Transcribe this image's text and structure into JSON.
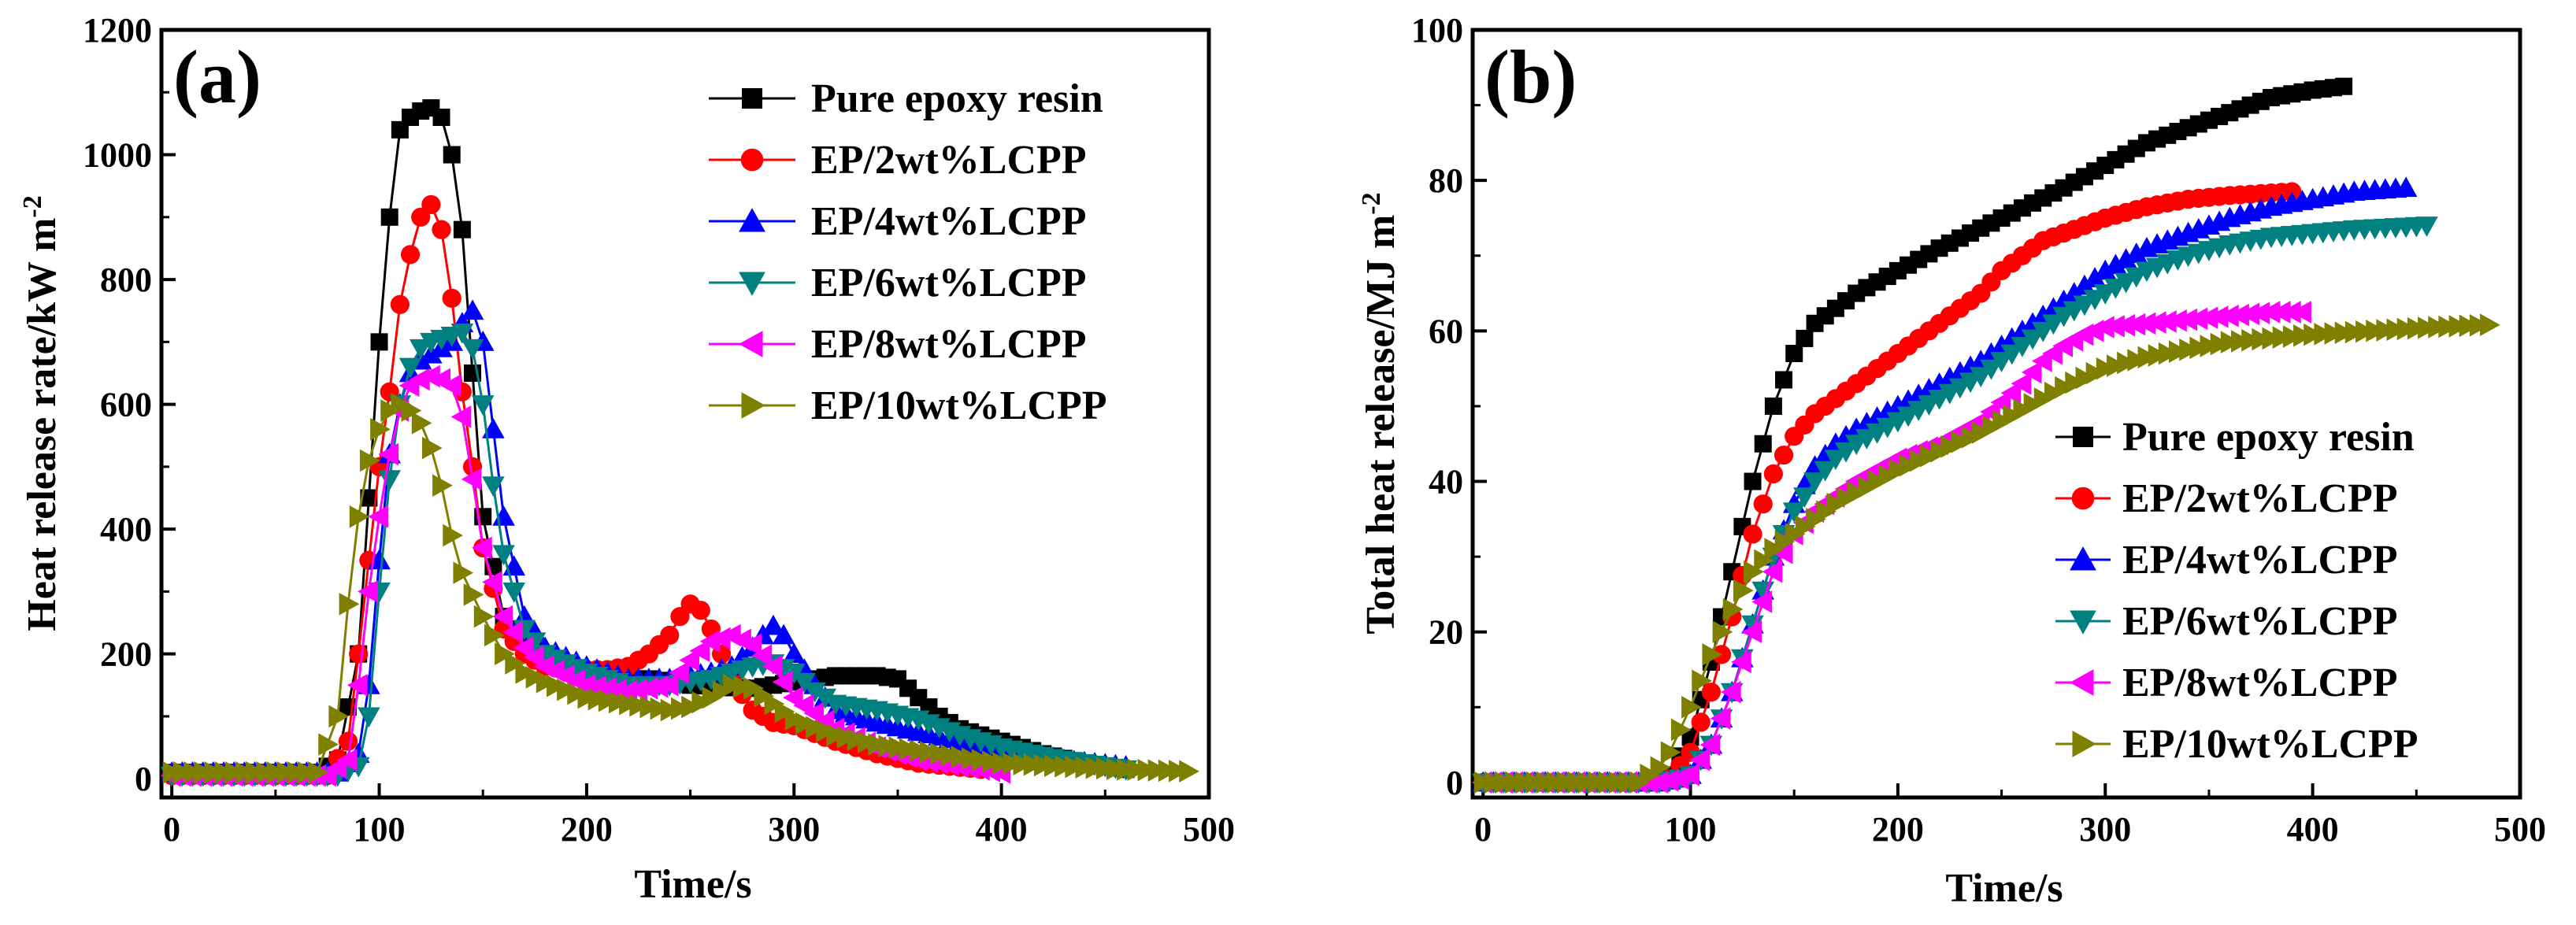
{
  "chart_data": [
    {
      "type": "line",
      "panel_label": "(a)",
      "xlabel": "Time/s",
      "ylabel": "Heat release rate/kW m",
      "ylabel_sup": "-2",
      "xlim": [
        -5,
        500
      ],
      "ylim": [
        -30,
        1200
      ],
      "xticks": [
        "0",
        "100",
        "200",
        "300",
        "400",
        "500"
      ],
      "yticks": [
        "0",
        "200",
        "400",
        "600",
        "800",
        "1000",
        "1200"
      ],
      "legend_position": "top-right",
      "series": [
        {
          "name": "Pure epoxy resin",
          "color": "#000000",
          "marker": "square",
          "x": [
            0,
            70,
            80,
            90,
            95,
            100,
            105,
            110,
            115,
            120,
            125,
            130,
            135,
            140,
            145,
            150,
            160,
            170,
            180,
            200,
            210,
            220,
            230,
            240,
            250,
            260,
            270,
            280,
            290,
            300,
            310,
            320,
            330,
            340,
            350,
            360,
            370,
            380,
            400,
            420,
            440,
            460
          ],
          "y": [
            10,
            10,
            30,
            200,
            450,
            700,
            900,
            1040,
            1060,
            1070,
            1075,
            1060,
            1000,
            880,
            650,
            420,
            260,
            220,
            190,
            170,
            165,
            160,
            160,
            155,
            150,
            148,
            146,
            145,
            150,
            155,
            160,
            165,
            165,
            165,
            160,
            130,
            100,
            80,
            60,
            40,
            25,
            15
          ]
        },
        {
          "name": "EP/2wt%LCPP",
          "color": "#ff0000",
          "marker": "circle",
          "x": [
            0,
            75,
            85,
            90,
            95,
            100,
            105,
            110,
            115,
            120,
            125,
            130,
            135,
            140,
            145,
            150,
            160,
            170,
            180,
            190,
            200,
            210,
            220,
            230,
            240,
            245,
            250,
            255,
            260,
            270,
            280,
            290,
            300,
            320,
            340,
            360,
            390
          ],
          "y": [
            5,
            5,
            60,
            200,
            350,
            500,
            620,
            760,
            840,
            900,
            920,
            880,
            770,
            620,
            500,
            370,
            240,
            200,
            180,
            175,
            175,
            175,
            180,
            200,
            230,
            260,
            280,
            270,
            240,
            160,
            110,
            90,
            85,
            60,
            40,
            25,
            15
          ]
        },
        {
          "name": "EP/4wt%LCPP",
          "color": "#0000ff",
          "marker": "triangle-up",
          "x": [
            0,
            80,
            90,
            95,
            100,
            105,
            110,
            115,
            120,
            125,
            130,
            135,
            140,
            145,
            150,
            155,
            160,
            170,
            180,
            200,
            220,
            240,
            260,
            270,
            280,
            285,
            290,
            295,
            300,
            310,
            320,
            340,
            360,
            380,
            400,
            430,
            460
          ],
          "y": [
            10,
            10,
            40,
            150,
            350,
            520,
            600,
            650,
            670,
            680,
            690,
            700,
            730,
            750,
            700,
            560,
            420,
            260,
            210,
            180,
            160,
            160,
            170,
            180,
            210,
            230,
            245,
            230,
            200,
            150,
            110,
            90,
            75,
            60,
            45,
            30,
            20
          ]
        },
        {
          "name": "EP/6wt%LCPP",
          "color": "#008080",
          "marker": "triangle-down",
          "x": [
            0,
            80,
            90,
            95,
            100,
            105,
            110,
            115,
            120,
            125,
            130,
            135,
            140,
            145,
            150,
            155,
            160,
            170,
            180,
            200,
            220,
            240,
            260,
            270,
            280,
            290,
            300,
            310,
            320,
            340,
            360,
            380,
            400,
            430,
            460
          ],
          "y": [
            5,
            5,
            20,
            100,
            300,
            480,
            600,
            660,
            690,
            700,
            705,
            710,
            715,
            690,
            600,
            470,
            360,
            240,
            200,
            170,
            150,
            150,
            160,
            170,
            180,
            185,
            170,
            140,
            120,
            110,
            95,
            70,
            50,
            30,
            15
          ]
        },
        {
          "name": "EP/8wt%LCPP",
          "color": "#ff00ff",
          "marker": "triangle-left",
          "x": [
            0,
            75,
            85,
            90,
            95,
            100,
            105,
            110,
            115,
            120,
            125,
            130,
            135,
            140,
            145,
            150,
            160,
            170,
            180,
            200,
            220,
            240,
            250,
            260,
            270,
            280,
            290,
            300,
            320,
            340,
            360,
            380,
            400
          ],
          "y": [
            5,
            5,
            30,
            150,
            300,
            420,
            520,
            590,
            630,
            640,
            645,
            640,
            630,
            580,
            480,
            370,
            260,
            210,
            180,
            150,
            140,
            150,
            190,
            220,
            230,
            215,
            180,
            130,
            80,
            50,
            30,
            20,
            10
          ]
        },
        {
          "name": "EP/10wt%LCPP",
          "color": "#808000",
          "marker": "triangle-right",
          "x": [
            0,
            70,
            80,
            85,
            90,
            95,
            100,
            105,
            110,
            115,
            120,
            125,
            130,
            135,
            140,
            150,
            160,
            170,
            180,
            200,
            220,
            240,
            250,
            260,
            270,
            280,
            290,
            300,
            320,
            340,
            360,
            380,
            400,
            430,
            460,
            490
          ],
          "y": [
            10,
            10,
            100,
            280,
            420,
            510,
            560,
            590,
            600,
            590,
            570,
            530,
            470,
            390,
            330,
            260,
            200,
            170,
            155,
            130,
            120,
            110,
            115,
            130,
            150,
            145,
            120,
            95,
            70,
            55,
            45,
            35,
            25,
            20,
            15,
            12
          ]
        }
      ]
    },
    {
      "type": "line",
      "panel_label": "(b)",
      "xlabel": "Time/s",
      "ylabel": "Total heat release/MJ m",
      "ylabel_sup": "-2",
      "xlim": [
        -5,
        500
      ],
      "ylim": [
        -2,
        100
      ],
      "xticks": [
        "0",
        "100",
        "200",
        "300",
        "400",
        "500"
      ],
      "yticks": [
        "0",
        "20",
        "40",
        "60",
        "80",
        "100"
      ],
      "legend_position": "center-right",
      "series": [
        {
          "name": "Pure epoxy resin",
          "color": "#000000",
          "marker": "square",
          "x": [
            0,
            80,
            90,
            100,
            110,
            120,
            130,
            140,
            150,
            160,
            170,
            180,
            200,
            220,
            250,
            280,
            300,
            320,
            340,
            360,
            380,
            400,
            415
          ],
          "y": [
            0,
            0,
            1,
            6,
            16,
            28,
            40,
            50,
            57,
            61,
            63,
            65,
            68,
            71,
            75,
            79,
            82,
            85,
            87,
            89,
            91,
            92,
            92.5
          ]
        },
        {
          "name": "EP/2wt%LCPP",
          "color": "#ff0000",
          "marker": "circle",
          "x": [
            0,
            80,
            90,
            100,
            110,
            120,
            130,
            140,
            150,
            160,
            170,
            180,
            200,
            220,
            240,
            250,
            260,
            270,
            280,
            300,
            320,
            340,
            360,
            390
          ],
          "y": [
            0,
            0,
            0.5,
            4,
            12,
            22,
            33,
            41,
            46,
            49,
            51,
            53,
            57,
            61,
            65,
            68,
            70,
            72,
            73,
            75,
            76.5,
            77.5,
            78,
            78.5
          ]
        },
        {
          "name": "EP/4wt%LCPP",
          "color": "#0000ff",
          "marker": "triangle-up",
          "x": [
            0,
            85,
            95,
            100,
            110,
            120,
            130,
            140,
            150,
            160,
            170,
            180,
            200,
            220,
            240,
            260,
            280,
            300,
            320,
            340,
            360,
            380,
            400,
            420,
            445
          ],
          "y": [
            0,
            0,
            0.5,
            1,
            5,
            12,
            21,
            30,
            37,
            42,
            45,
            47,
            50,
            53,
            56,
            60,
            64,
            68,
            71,
            73,
            75,
            76.5,
            77.5,
            78.5,
            79
          ]
        },
        {
          "name": "EP/6wt%LCPP",
          "color": "#008080",
          "marker": "triangle-down",
          "x": [
            0,
            85,
            95,
            100,
            110,
            120,
            130,
            140,
            150,
            160,
            170,
            180,
            200,
            220,
            240,
            260,
            280,
            300,
            320,
            340,
            360,
            380,
            400,
            420,
            455
          ],
          "y": [
            0,
            0,
            0.5,
            1,
            5,
            12,
            21,
            30,
            36,
            40,
            43,
            45,
            48,
            51,
            54,
            58,
            62,
            65,
            68,
            70,
            71.5,
            72.5,
            73,
            73.5,
            74
          ]
        },
        {
          "name": "EP/8wt%LCPP",
          "color": "#ff00ff",
          "marker": "triangle-left",
          "x": [
            0,
            85,
            95,
            100,
            110,
            120,
            130,
            140,
            150,
            160,
            170,
            180,
            200,
            220,
            240,
            260,
            270,
            280,
            290,
            300,
            320,
            340,
            360,
            380,
            395
          ],
          "y": [
            0,
            0,
            0.5,
            1,
            5,
            12,
            20,
            28,
            33,
            36,
            38,
            40,
            43,
            45,
            48,
            53,
            56,
            58,
            59.5,
            60.5,
            61,
            61.5,
            62,
            62.5,
            62.5
          ]
        },
        {
          "name": "EP/10wt%LCPP",
          "color": "#808000",
          "marker": "triangle-right",
          "x": [
            0,
            75,
            85,
            90,
            100,
            110,
            120,
            130,
            140,
            150,
            160,
            170,
            180,
            200,
            220,
            240,
            260,
            280,
            300,
            320,
            340,
            360,
            380,
            400,
            430,
            460,
            485
          ],
          "y": [
            0,
            0,
            2,
            4,
            10,
            17,
            23,
            28,
            31,
            33,
            35,
            37,
            38.5,
            41.5,
            44,
            46.5,
            49.5,
            52.5,
            55,
            56.5,
            57.5,
            58.5,
            59,
            59.5,
            60,
            60.5,
            60.8
          ]
        }
      ]
    }
  ]
}
